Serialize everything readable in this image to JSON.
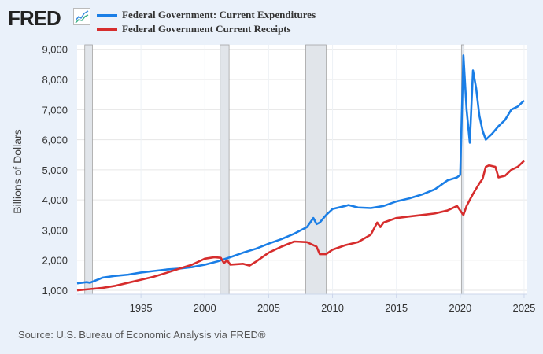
{
  "logo": "FRED",
  "source": "Source: U.S. Bureau of Economic Analysis via FRED®",
  "chart_data": {
    "type": "line",
    "title": "",
    "xlabel": "",
    "ylabel": "Billions of Dollars",
    "xlim": [
      1990,
      2025.25
    ],
    "ylim": [
      870,
      9150
    ],
    "x_ticks": [
      "1995",
      "2000",
      "2005",
      "2010",
      "2015",
      "2020",
      "2025"
    ],
    "y_ticks": [
      "1,000",
      "2,000",
      "3,000",
      "4,000",
      "5,000",
      "6,000",
      "7,000",
      "8,000",
      "9,000"
    ],
    "grid": true,
    "legend": "top",
    "recessions": [
      [
        1990.6,
        1991.2
      ],
      [
        2001.2,
        2001.9
      ],
      [
        2007.9,
        2009.5
      ],
      [
        2020.1,
        2020.3
      ]
    ],
    "series": [
      {
        "name": "Federal Government: Current Expenditures",
        "color": "#1a7ee6",
        "x": [
          1990,
          1990.75,
          1991,
          1992,
          1993,
          1994,
          1995,
          1996,
          1997,
          1998,
          1999,
          2000,
          2001,
          2002,
          2003,
          2004,
          2005,
          2006,
          2007,
          2008,
          2008.5,
          2008.75,
          2009,
          2009.5,
          2010,
          2011,
          2011.25,
          2012,
          2013,
          2014,
          2015,
          2016,
          2017,
          2018,
          2019,
          2019.75,
          2020,
          2020.25,
          2020.5,
          2020.75,
          2021,
          2021.25,
          2021.5,
          2021.75,
          2022,
          2022.5,
          2023,
          2023.5,
          2024,
          2024.5,
          2025
        ],
        "y": [
          1230,
          1270,
          1250,
          1420,
          1480,
          1520,
          1590,
          1640,
          1690,
          1720,
          1770,
          1850,
          1960,
          2100,
          2250,
          2380,
          2550,
          2700,
          2880,
          3100,
          3400,
          3200,
          3250,
          3500,
          3700,
          3800,
          3830,
          3750,
          3730,
          3800,
          3950,
          4050,
          4180,
          4350,
          4650,
          4750,
          4830,
          8800,
          7000,
          5900,
          8300,
          7700,
          6800,
          6300,
          6000,
          6200,
          6450,
          6650,
          7000,
          7100,
          7300
        ]
      },
      {
        "name": "Federal Government Current Receipts",
        "color": "#d62d2d",
        "x": [
          1990,
          1991,
          1992,
          1993,
          1994,
          1995,
          1996,
          1997,
          1998,
          1999,
          2000,
          2000.75,
          2001.25,
          2001.5,
          2001.75,
          2002,
          2003,
          2003.5,
          2004,
          2005,
          2006,
          2007,
          2008,
          2008.75,
          2009,
          2009.5,
          2010,
          2011,
          2012,
          2013,
          2013.5,
          2013.75,
          2014,
          2015,
          2016,
          2017,
          2018,
          2019,
          2019.75,
          2020.25,
          2020.5,
          2021,
          2021.5,
          2021.75,
          2022,
          2022.25,
          2022.75,
          2023,
          2023.5,
          2024,
          2024.5,
          2025
        ],
        "y": [
          1000,
          1040,
          1080,
          1150,
          1250,
          1350,
          1450,
          1580,
          1720,
          1850,
          2050,
          2100,
          2080,
          1900,
          2000,
          1850,
          1880,
          1820,
          1950,
          2250,
          2450,
          2620,
          2600,
          2450,
          2200,
          2200,
          2350,
          2500,
          2600,
          2850,
          3250,
          3100,
          3250,
          3400,
          3450,
          3500,
          3550,
          3650,
          3800,
          3500,
          3800,
          4200,
          4550,
          4700,
          5100,
          5150,
          5100,
          4750,
          4800,
          5000,
          5100,
          5300
        ]
      }
    ]
  }
}
